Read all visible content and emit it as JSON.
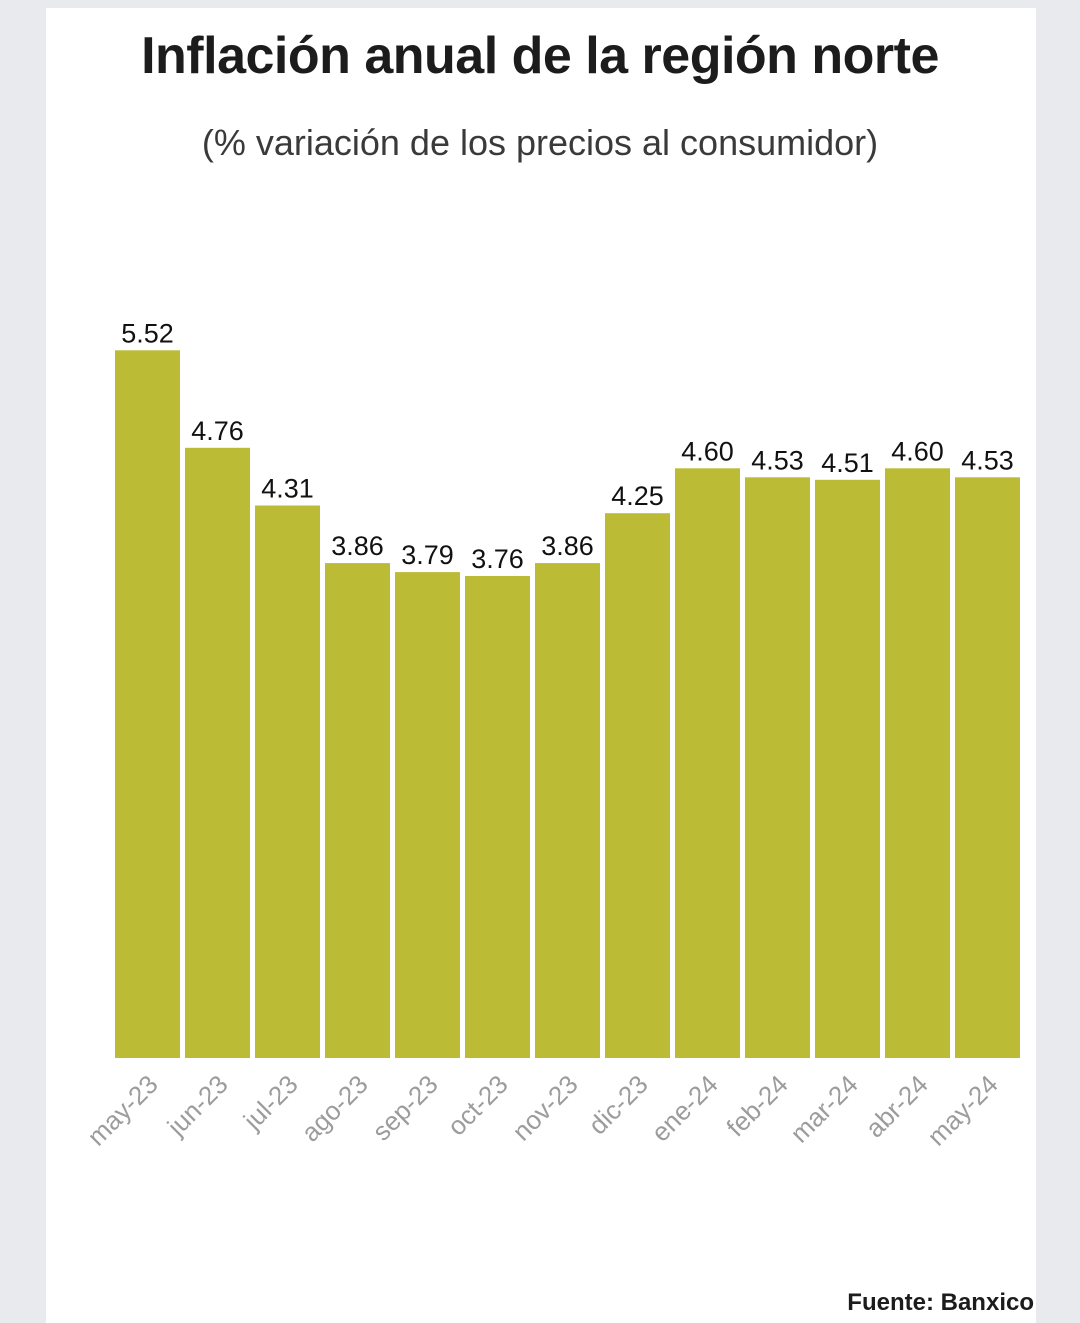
{
  "chart_data": {
    "type": "bar",
    "title": "Inflación anual de la región norte",
    "subtitle": "(% variación de los precios al consumidor)",
    "categories": [
      "may-23",
      "jun-23",
      "jul-23",
      "ago-23",
      "sep-23",
      "oct-23",
      "nov-23",
      "dic-23",
      "ene-24",
      "feb-24",
      "mar-24",
      "abr-24",
      "may-24"
    ],
    "values": [
      5.52,
      4.76,
      4.31,
      3.86,
      3.79,
      3.76,
      3.86,
      4.25,
      4.6,
      4.53,
      4.51,
      4.6,
      4.53
    ],
    "value_labels": [
      "5.52",
      "4.76",
      "4.31",
      "3.86",
      "3.79",
      "3.76",
      "3.86",
      "4.25",
      "4.60",
      "4.53",
      "4.51",
      "4.60",
      "4.53"
    ],
    "xlabel": "",
    "ylabel": "",
    "ylim": [
      0,
      7
    ],
    "bar_color": "#bcbb36",
    "grid": false,
    "source": "Fuente: Banxico"
  }
}
